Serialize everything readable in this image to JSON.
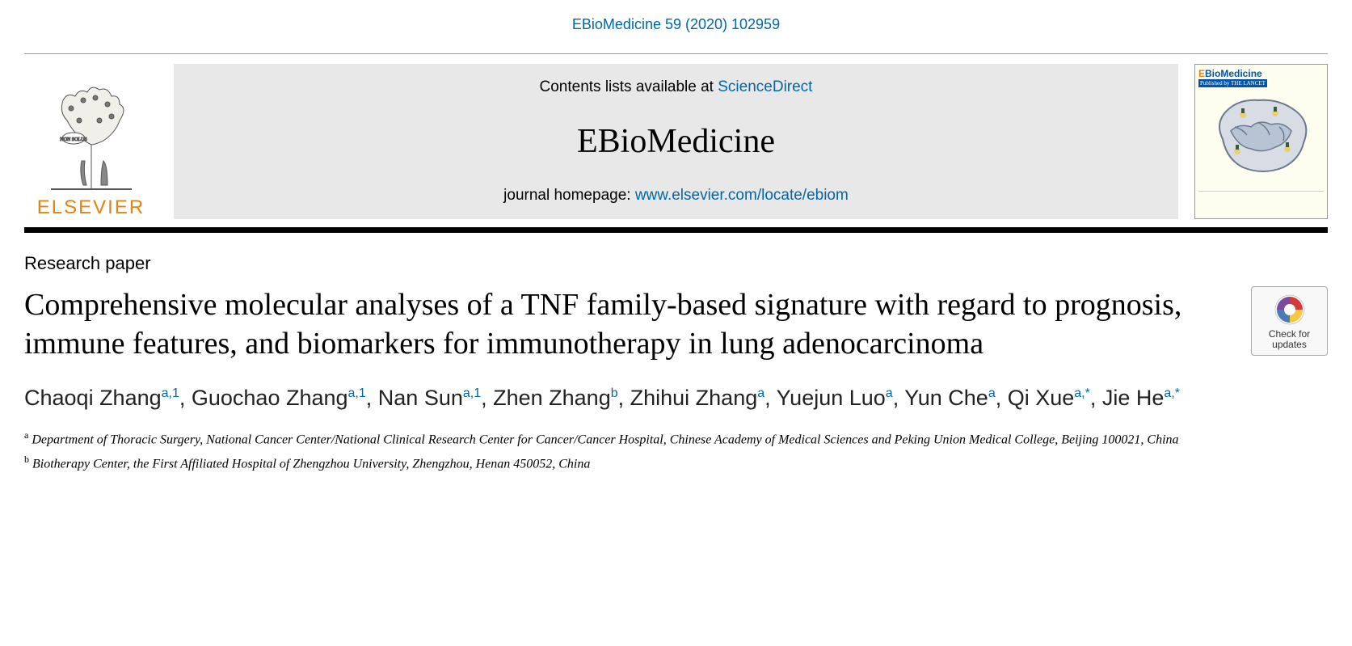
{
  "citation": "EBioMedicine 59 (2020) 102959",
  "publisher": "ELSEVIER",
  "banner": {
    "contents_prefix": "Contents lists available at ",
    "contents_link": "ScienceDirect",
    "journal": "EBioMedicine",
    "homepage_prefix": "journal homepage: ",
    "homepage_url": "www.elsevier.com/locate/ebiom"
  },
  "cover": {
    "title_e": "E",
    "title_bio": "BioMedicine",
    "subtitle": "Published by THE LANCET"
  },
  "article_type": "Research paper",
  "title": "Comprehensive molecular analyses of a TNF family-based signature with regard to prognosis, immune features, and biomarkers for immunotherapy in lung adenocarcinoma",
  "crossmark": "Check for updates",
  "authors": [
    {
      "name": "Chaoqi Zhang",
      "aff": "a,1"
    },
    {
      "name": "Guochao Zhang",
      "aff": "a,1"
    },
    {
      "name": "Nan Sun",
      "aff": "a,1"
    },
    {
      "name": "Zhen Zhang",
      "aff": "b"
    },
    {
      "name": "Zhihui Zhang",
      "aff": "a"
    },
    {
      "name": "Yuejun Luo",
      "aff": "a"
    },
    {
      "name": "Yun Che",
      "aff": "a"
    },
    {
      "name": "Qi Xue",
      "aff": "a,*"
    },
    {
      "name": "Jie He",
      "aff": "a,*"
    }
  ],
  "affiliations": {
    "a": "Department of Thoracic Surgery, National Cancer Center/National Clinical Research Center for Cancer/Cancer Hospital, Chinese Academy of Medical Sciences and Peking Union Medical College, Beijing 100021, China",
    "b": "Biotherapy Center, the First Affiliated Hospital of Zhengzhou University, Zhengzhou, Henan 450052, China"
  },
  "colors": {
    "link": "#0066aa",
    "publisher": "#e8820e",
    "banner_bg": "#e8e8e8"
  }
}
